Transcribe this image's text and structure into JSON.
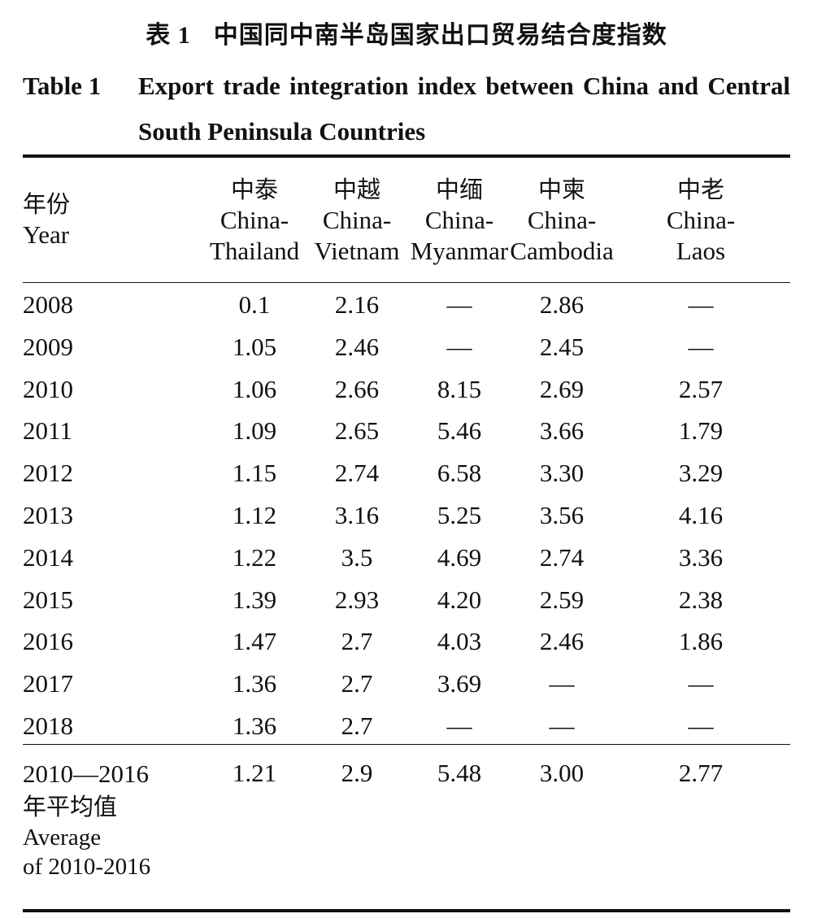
{
  "title": {
    "cn_number": "表 1",
    "cn_text": "中国同中南半岛国家出口贸易结合度指数",
    "en_label": "Table 1",
    "en_text": "Export trade integration index between China and Central South Peninsula Countries"
  },
  "header": {
    "year_cn": "年份",
    "year_en": "Year",
    "columns": [
      {
        "cn": "中泰",
        "en1": "China-",
        "en2": "Thailand"
      },
      {
        "cn": "中越",
        "en1": "China-",
        "en2": "Vietnam"
      },
      {
        "cn": "中缅",
        "en1": "China-",
        "en2": "Myanmar"
      },
      {
        "cn": "中柬",
        "en1": "China-",
        "en2": "Cambodia"
      },
      {
        "cn": "中老",
        "en1": "China-",
        "en2": "Laos"
      }
    ]
  },
  "rows": [
    {
      "year": "2008",
      "values": [
        "0.1",
        "2.16",
        "—",
        "2.86",
        "—"
      ]
    },
    {
      "year": "2009",
      "values": [
        "1.05",
        "2.46",
        "—",
        "2.45",
        "—"
      ]
    },
    {
      "year": "2010",
      "values": [
        "1.06",
        "2.66",
        "8.15",
        "2.69",
        "2.57"
      ]
    },
    {
      "year": "2011",
      "values": [
        "1.09",
        "2.65",
        "5.46",
        "3.66",
        "1.79"
      ]
    },
    {
      "year": "2012",
      "values": [
        "1.15",
        "2.74",
        "6.58",
        "3.30",
        "3.29"
      ]
    },
    {
      "year": "2013",
      "values": [
        "1.12",
        "3.16",
        "5.25",
        "3.56",
        "4.16"
      ]
    },
    {
      "year": "2014",
      "values": [
        "1.22",
        "3.5",
        "4.69",
        "2.74",
        "3.36"
      ]
    },
    {
      "year": "2015",
      "values": [
        "1.39",
        "2.93",
        "4.20",
        "2.59",
        "2.38"
      ]
    },
    {
      "year": "2016",
      "values": [
        "1.47",
        "2.7",
        "4.03",
        "2.46",
        "1.86"
      ]
    },
    {
      "year": "2017",
      "values": [
        "1.36",
        "2.7",
        "3.69",
        "—",
        "—"
      ]
    },
    {
      "year": "2018",
      "values": [
        "1.36",
        "2.7",
        "—",
        "—",
        "—"
      ]
    }
  ],
  "average": {
    "label_line1": "2010—2016",
    "label_cn": "年平均值",
    "label_en1": "Average",
    "label_en2": "of 2010-2016",
    "values": [
      "1.21",
      "2.9",
      "5.48",
      "3.00",
      "2.77"
    ]
  }
}
